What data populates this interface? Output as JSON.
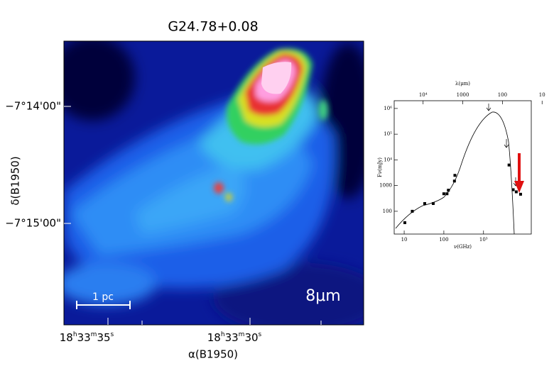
{
  "image_panel": {
    "title": "G24.78+0.08",
    "y_label": "δ(B1950)",
    "y_tick_labels": [
      "−7°14'00\"",
      "−7°15'00\""
    ],
    "x_label": "α(B1950)",
    "x_tick_labels": [
      [
        "18",
        "h",
        "33",
        "m",
        "35",
        "s"
      ],
      [
        "18",
        "h",
        "33",
        "m",
        "30",
        "s"
      ]
    ],
    "scale_bar": "1 pc",
    "band": "8μm"
  },
  "chart_data": {
    "type": "scatter",
    "x_label": "ν(GHz)",
    "x2_label": "λ(μm)",
    "y_label": "Fν(mJy)",
    "log_x": true,
    "log_y": true,
    "xlim": [
      5.6,
      16000
    ],
    "ylim": [
      13,
      2000000
    ],
    "x2lim": [
      53571,
      18.75
    ],
    "xticks": [
      10,
      100,
      {
        "value": 1000,
        "label": "10³"
      }
    ],
    "x2ticks": [
      {
        "value": 10000,
        "label": "10⁴"
      },
      1000,
      100,
      10
    ],
    "yticks": [
      100,
      1000,
      {
        "value": 10000,
        "label": "10⁴"
      },
      {
        "value": 100000,
        "label": "10⁵"
      },
      {
        "value": 1000000,
        "label": "10⁶"
      }
    ],
    "color": "#000000",
    "x": [
      10.4,
      16,
      33,
      54,
      100,
      120,
      130,
      185,
      190,
      4400,
      5600,
      6700,
      8600
    ],
    "values": [
      36,
      100,
      200,
      200,
      480,
      480,
      660,
      1500,
      2500,
      6300,
      690,
      570,
      460
    ]
  }
}
